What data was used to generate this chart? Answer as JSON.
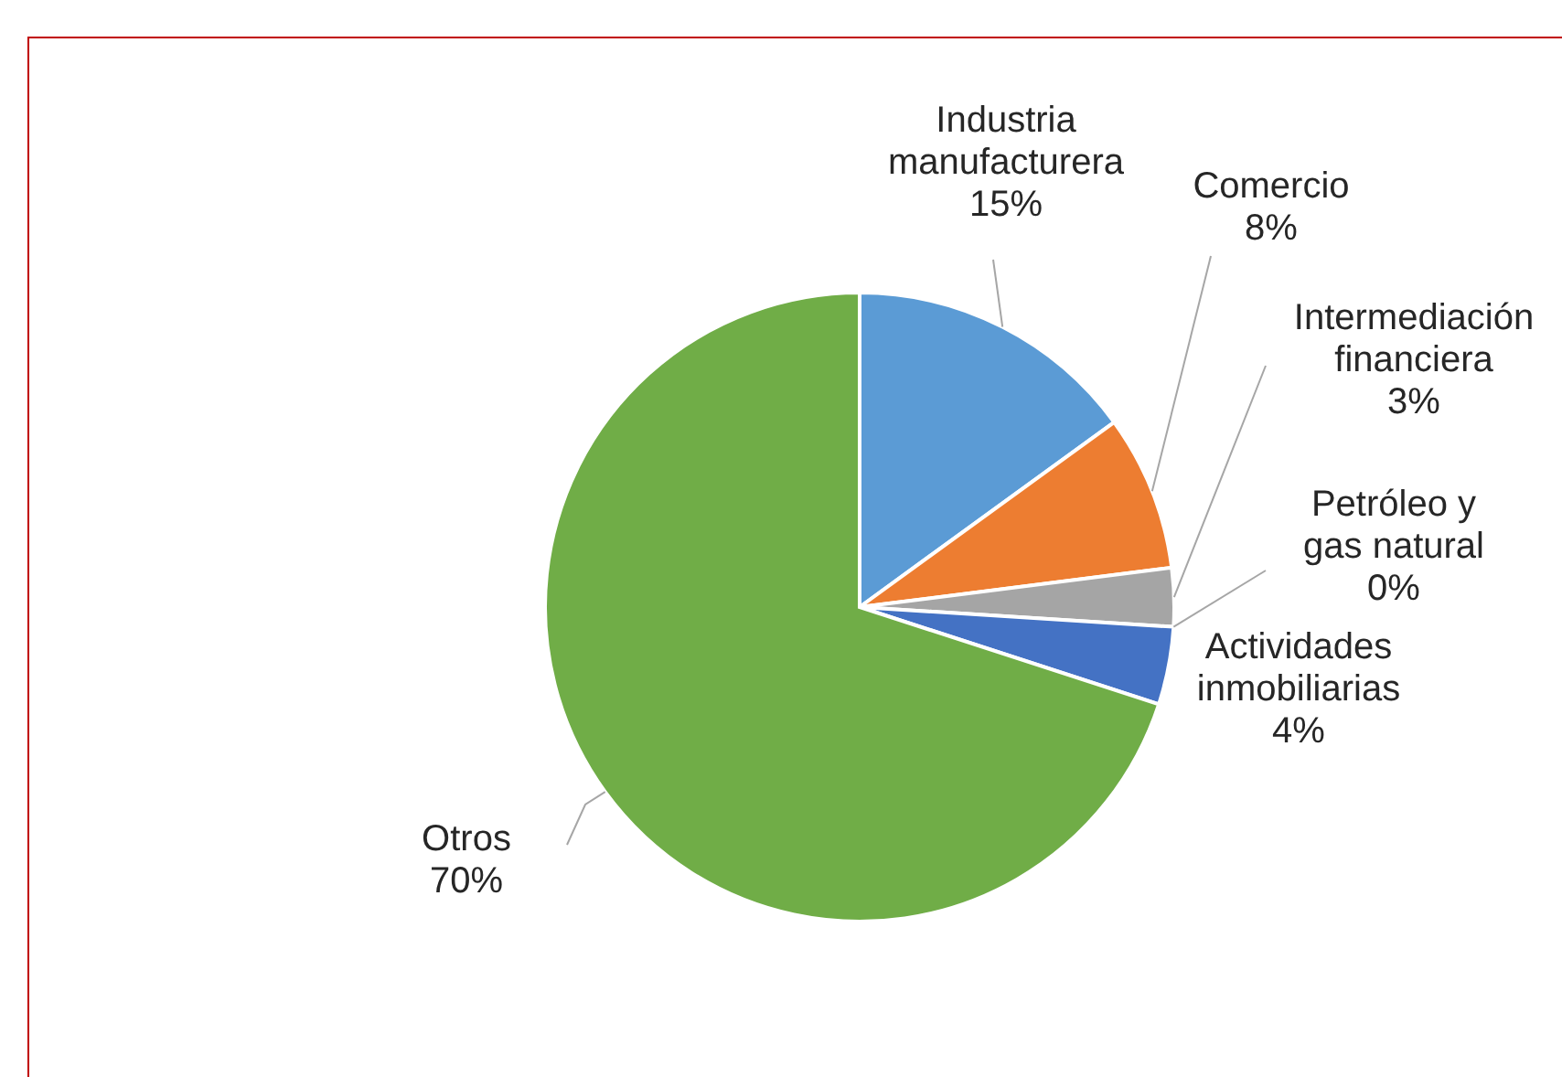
{
  "chart_data": {
    "type": "pie",
    "categories": [
      "Industria manufacturera",
      "Comercio",
      "Intermediación financiera",
      "Petróleo y gas natural",
      "Actividades inmobiliarias",
      "Otros"
    ],
    "values": [
      15,
      8,
      3,
      0,
      4,
      70
    ],
    "value_labels": [
      "15%",
      "8%",
      "3%",
      "0%",
      "4%",
      "70%"
    ],
    "colors": [
      "#5b9bd5",
      "#ed7d31",
      "#a5a5a5",
      "#ffc000",
      "#4472c4",
      "#70ad47"
    ],
    "legend": false
  }
}
